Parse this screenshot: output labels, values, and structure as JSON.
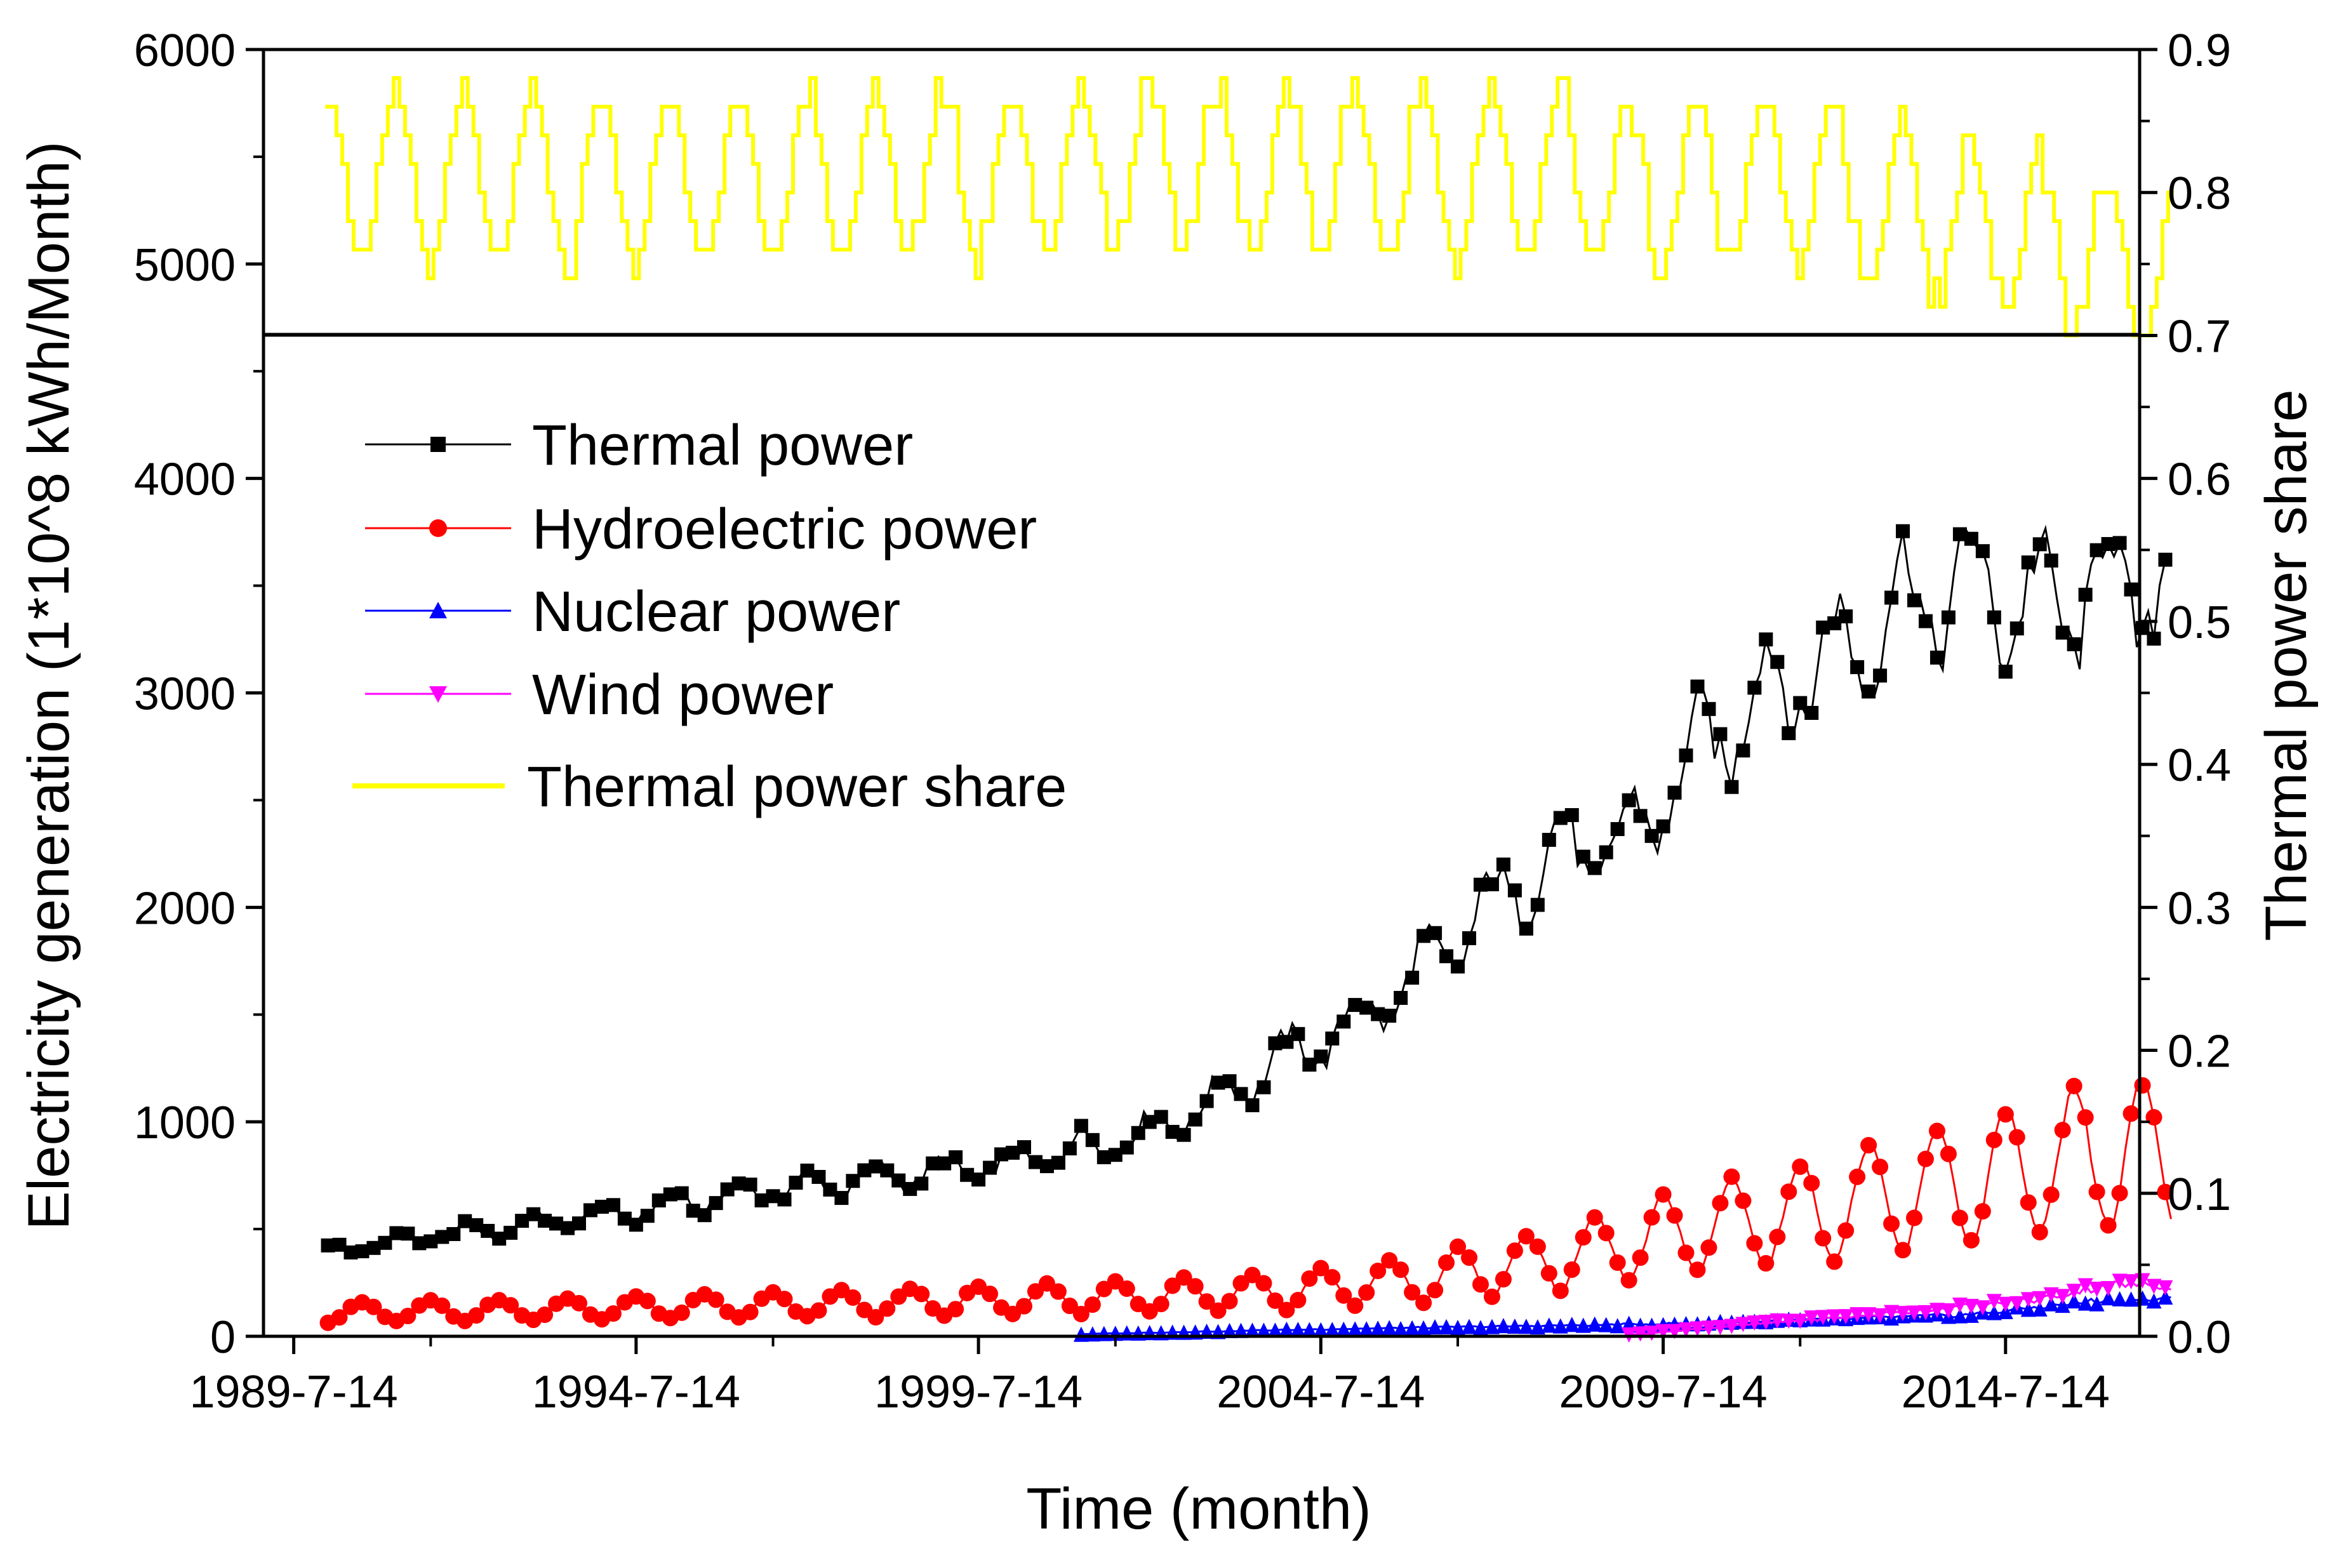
{
  "chart_data": {
    "type": "line",
    "title": "",
    "xlabel": "Time (month)",
    "ylabel": "Electricity generation (1*10^8 kWh/Month)",
    "ylabel_right": "Thermal power share",
    "x_start": "1989-07",
    "x_end": "2017-01",
    "xlim_years": [
      1989.1,
      2016.5
    ],
    "x_ticks": [
      "1989-7-14",
      "1994-7-14",
      "1999-7-14",
      "2004-7-14",
      "2009-7-14",
      "2014-7-14"
    ],
    "y_ticks": [
      "0",
      "1000",
      "2000",
      "3000",
      "4000",
      "5000",
      "6000"
    ],
    "ylim_left": [
      0,
      6000
    ],
    "y2_ticks": [
      "0.0",
      "0.1",
      "0.2",
      "0.3",
      "0.4",
      "0.5",
      "0.6",
      "0.7",
      "0.8",
      "0.9"
    ],
    "ylim_right": [
      0,
      0.9
    ],
    "panel_split_value": 4670,
    "legend": [
      "Thermal power",
      "Hydroelectric power",
      "Nuclear power",
      "Wind power",
      "Thermal power share"
    ],
    "legend_position": "upper-left",
    "colors": {
      "thermal": "#000000",
      "hydro": "#ff0000",
      "nuclear": "#0000ff",
      "wind": "#ff00ff",
      "share": "#ffff00"
    },
    "series": [
      {
        "name": "Thermal power",
        "axis": "left",
        "marker": "square",
        "x_start": "1990-01",
        "x_end": "2016-12",
        "approximate_trend": {
          "years": [
            1990,
            1992,
            1994,
            1996,
            1998,
            2000,
            2001,
            2002,
            2003,
            2004,
            2005,
            2006,
            2007,
            2008,
            2009,
            2010,
            2011,
            2012,
            2013,
            2014,
            2015,
            2016
          ],
          "values": [
            400,
            480,
            560,
            660,
            740,
            800,
            880,
            950,
            1100,
            1300,
            1450,
            1700,
            2000,
            2250,
            2300,
            2700,
            3000,
            3150,
            3400,
            3500,
            3400,
            3500
          ]
        },
        "seasonal_amplitude": 120
      },
      {
        "name": "Hydroelectric power",
        "axis": "left",
        "marker": "circle",
        "x_start": "1990-01",
        "x_end": "2016-12",
        "approximate_trend": {
          "years": [
            1990,
            1994,
            1998,
            2000,
            2002,
            2004,
            2006,
            2008,
            2010,
            2012,
            2014,
            2016
          ],
          "values": [
            110,
            130,
            155,
            170,
            190,
            210,
            270,
            360,
            500,
            600,
            720,
            850
          ]
        },
        "seasonal_amplitude_fraction": 0.4,
        "peak_max": 1170
      },
      {
        "name": "Nuclear power",
        "axis": "left",
        "marker": "triangle-up",
        "x_start": "2001-01",
        "x_end": "2016-12",
        "approximate_trend": {
          "years": [
            2001,
            2004,
            2008,
            2010,
            2012,
            2014,
            2016
          ],
          "values": [
            10,
            30,
            50,
            60,
            80,
            100,
            170
          ]
        }
      },
      {
        "name": "Wind power",
        "axis": "left",
        "marker": "triangle-down",
        "x_start": "2009-01",
        "x_end": "2016-12",
        "approximate_trend": {
          "years": [
            2009,
            2011,
            2013,
            2015,
            2016
          ],
          "values": [
            5,
            60,
            110,
            170,
            240
          ]
        }
      },
      {
        "name": "Thermal power share",
        "axis": "right",
        "style": "step",
        "x_start": "1990-01",
        "x_end": "2016-12",
        "approximate_trend": {
          "years": [
            1990,
            1996,
            2002,
            2008,
            2012,
            2014,
            2016
          ],
          "values": [
            0.81,
            0.81,
            0.82,
            0.81,
            0.8,
            0.78,
            0.75
          ]
        },
        "seasonal_amplitude": 0.06,
        "min": 0.69,
        "max": 0.89
      }
    ]
  }
}
